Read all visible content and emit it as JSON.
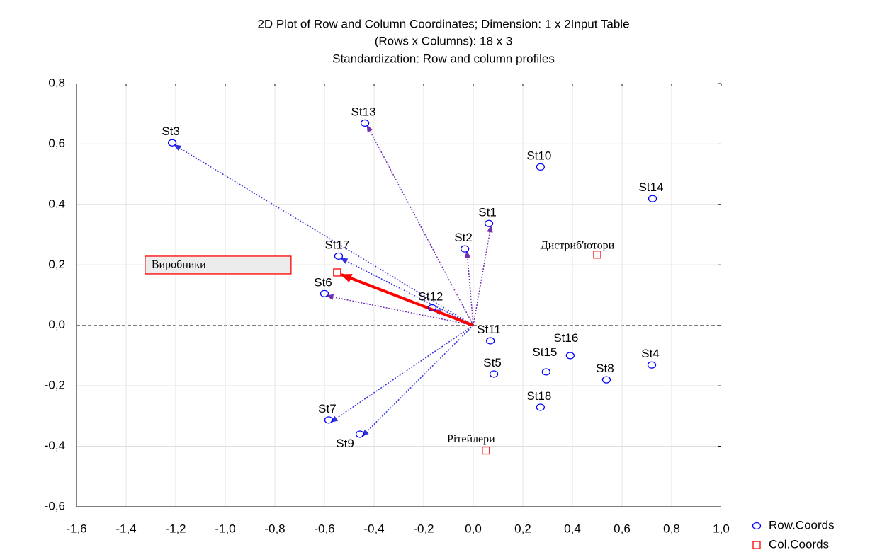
{
  "chart_data": {
    "type": "scatter",
    "title": [
      "2D Plot of Row and Column Coordinates; Dimension: 1 x 2Input Table",
      "(Rows x Columns): 18 x 3",
      "Standardization: Row and column profiles"
    ],
    "xlim": [
      -1.6,
      1.0
    ],
    "ylim": [
      -0.6,
      0.8
    ],
    "xticks": [
      {
        "value": -1.6,
        "label": "-1,6"
      },
      {
        "value": -1.4,
        "label": "-1,4"
      },
      {
        "value": -1.2,
        "label": "-1,2"
      },
      {
        "value": -1.0,
        "label": "-1,0"
      },
      {
        "value": -0.8,
        "label": "-0,8"
      },
      {
        "value": -0.6,
        "label": "-0,6"
      },
      {
        "value": -0.4,
        "label": "-0,4"
      },
      {
        "value": -0.2,
        "label": "-0,2"
      },
      {
        "value": 0.0,
        "label": "0,0"
      },
      {
        "value": 0.2,
        "label": "0,2"
      },
      {
        "value": 0.4,
        "label": "0,4"
      },
      {
        "value": 0.6,
        "label": "0,6"
      },
      {
        "value": 0.8,
        "label": "0,8"
      },
      {
        "value": 1.0,
        "label": "1,0"
      }
    ],
    "yticks": [
      {
        "value": -0.6,
        "label": "-0,6"
      },
      {
        "value": -0.4,
        "label": "-0,4"
      },
      {
        "value": -0.2,
        "label": "-0,2"
      },
      {
        "value": 0.0,
        "label": "0,0"
      },
      {
        "value": 0.2,
        "label": "0,2"
      },
      {
        "value": 0.4,
        "label": "0,4"
      },
      {
        "value": 0.6,
        "label": "0,6"
      },
      {
        "value": 0.8,
        "label": "0,8"
      }
    ],
    "grid": true,
    "legend": "bottom-right",
    "series": [
      {
        "name": "Row.Coords",
        "color": "#0000ff",
        "marker": "circle",
        "labels": [
          "St1",
          "St2",
          "St3",
          "St4",
          "St5",
          "St6",
          "St7",
          "St8",
          "St9",
          "St10",
          "St11",
          "St12",
          "St13",
          "St14",
          "St15",
          "St16",
          "St17",
          "St18"
        ],
        "x": [
          0.063,
          -0.034,
          -1.214,
          0.72,
          0.083,
          -0.6,
          -0.583,
          0.537,
          -0.457,
          0.271,
          0.069,
          -0.166,
          -0.437,
          0.723,
          0.294,
          0.391,
          -0.543,
          0.271
        ],
        "y": [
          0.337,
          0.253,
          0.604,
          -0.131,
          -0.161,
          0.105,
          -0.313,
          -0.18,
          -0.36,
          0.524,
          -0.051,
          0.058,
          0.669,
          0.419,
          -0.154,
          -0.1,
          0.229,
          -0.271
        ]
      },
      {
        "name": "Col.Coords",
        "color": "#ff0000",
        "marker": "square",
        "labels": [
          "Виробники",
          "Дистриб'ютори",
          "Рітейлери"
        ],
        "x": [
          -0.549,
          0.5,
          0.051
        ],
        "y": [
          0.175,
          0.234,
          -0.414
        ]
      }
    ]
  }
}
